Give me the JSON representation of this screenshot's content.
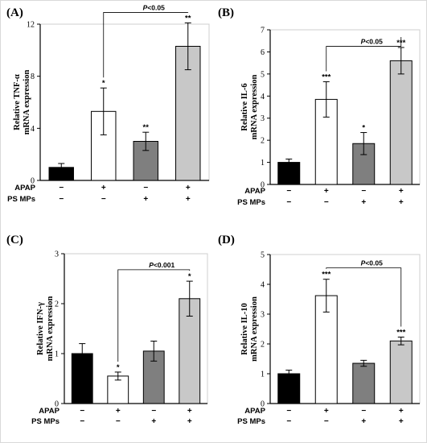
{
  "chart_data": [
    {
      "type": "bar",
      "panel_label": "(A)",
      "ylabel_line1": "Relative TNF-α",
      "ylabel_line2": "mRNA expression",
      "ylim": [
        0,
        12
      ],
      "yticks": [
        0,
        4,
        8,
        12
      ],
      "row_labels": [
        "APAP",
        "PS MPs"
      ],
      "conditions": [
        [
          "−",
          "−"
        ],
        [
          "+",
          "−"
        ],
        [
          "−",
          "+"
        ],
        [
          "+",
          "+"
        ]
      ],
      "values": [
        1.0,
        5.3,
        3.0,
        10.3
      ],
      "errors": [
        0.3,
        1.8,
        0.7,
        1.8
      ],
      "significance": [
        "",
        "*",
        "**",
        "**"
      ],
      "bar_colors": [
        "#000000",
        "#ffffff",
        "#7f7f7f",
        "#c8c8c8"
      ],
      "comparison": {
        "from": 1,
        "to": 3,
        "label_prefix": "P",
        "label_suffix": "<0.05",
        "level": 12.9
      }
    },
    {
      "type": "bar",
      "panel_label": "(B)",
      "ylabel_line1": "Relative IL-6",
      "ylabel_line2": "mRNA expression",
      "ylim": [
        0,
        7
      ],
      "yticks": [
        0,
        1,
        2,
        3,
        4,
        5,
        6,
        7
      ],
      "row_labels": [
        "APAP",
        "PS MPs"
      ],
      "conditions": [
        [
          "−",
          "−"
        ],
        [
          "+",
          "−"
        ],
        [
          "−",
          "+"
        ],
        [
          "+",
          "+"
        ]
      ],
      "values": [
        1.0,
        3.85,
        1.85,
        5.6
      ],
      "errors": [
        0.15,
        0.8,
        0.5,
        0.6
      ],
      "significance": [
        "",
        "***",
        "*",
        "***"
      ],
      "bar_colors": [
        "#000000",
        "#ffffff",
        "#7f7f7f",
        "#c8c8c8"
      ],
      "comparison": {
        "from": 1,
        "to": 3,
        "label_prefix": "P",
        "label_suffix": "<0.05",
        "level": 6.25
      }
    },
    {
      "type": "bar",
      "panel_label": "(C)",
      "ylabel_line1": "Relative IFN-γ",
      "ylabel_line2": "mRNA expression",
      "ylim": [
        0,
        3
      ],
      "yticks": [
        0,
        1,
        2,
        3
      ],
      "row_labels": [
        "APAP",
        "PS MPs"
      ],
      "conditions": [
        [
          "−",
          "−"
        ],
        [
          "+",
          "−"
        ],
        [
          "−",
          "+"
        ],
        [
          "+",
          "+"
        ]
      ],
      "values": [
        1.0,
        0.55,
        1.05,
        2.1
      ],
      "errors": [
        0.2,
        0.08,
        0.2,
        0.35
      ],
      "significance": [
        "",
        "*",
        "",
        "*"
      ],
      "bar_colors": [
        "#000000",
        "#ffffff",
        "#7f7f7f",
        "#c8c8c8"
      ],
      "comparison": {
        "from": 1,
        "to": 3,
        "label_prefix": "P",
        "label_suffix": "<0.001",
        "level": 2.68
      }
    },
    {
      "type": "bar",
      "panel_label": "(D)",
      "ylabel_line1": "Relative IL-10",
      "ylabel_line2": "mRNA expression",
      "ylim": [
        0,
        5
      ],
      "yticks": [
        0,
        1,
        2,
        3,
        4,
        5
      ],
      "row_labels": [
        "APAP",
        "PS MPs"
      ],
      "conditions": [
        [
          "−",
          "−"
        ],
        [
          "+",
          "−"
        ],
        [
          "−",
          "+"
        ],
        [
          "+",
          "+"
        ]
      ],
      "values": [
        1.0,
        3.62,
        1.35,
        2.1
      ],
      "errors": [
        0.12,
        0.55,
        0.1,
        0.13
      ],
      "significance": [
        "",
        "***",
        "",
        "***"
      ],
      "bar_colors": [
        "#000000",
        "#ffffff",
        "#7f7f7f",
        "#c8c8c8"
      ],
      "comparison": {
        "from": 1,
        "to": 3,
        "label_prefix": "P",
        "label_suffix": "<0.05",
        "level": 4.55
      }
    }
  ]
}
